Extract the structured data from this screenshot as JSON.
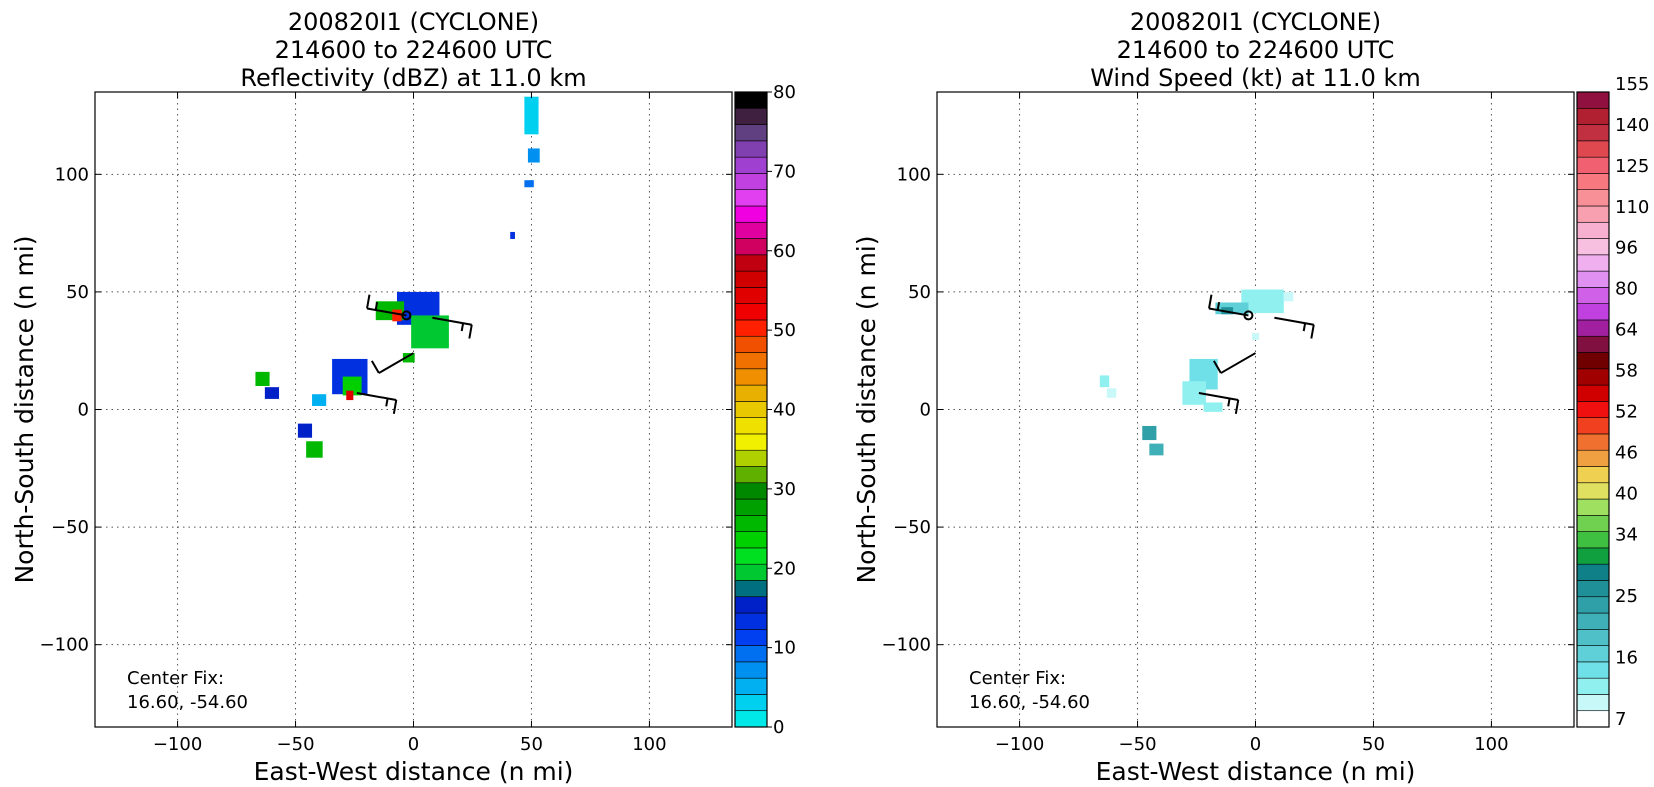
{
  "chart_data": [
    {
      "type": "heatmap",
      "title": [
        "200820I1 (CYCLONE)",
        "214600 to 224600 UTC",
        "Reflectivity (dBZ) at 11.0 km"
      ],
      "xlabel": "East-West distance (n mi)",
      "ylabel": "North-South distance (n mi)",
      "xlim": [
        -135,
        135
      ],
      "ylim": [
        -135,
        135
      ],
      "xticks": [
        -100,
        -50,
        0,
        50,
        100
      ],
      "yticks": [
        -100,
        -50,
        0,
        50,
        100
      ],
      "xtick_labels": [
        "−100",
        "−50",
        "0",
        "50",
        "100"
      ],
      "ytick_labels": [
        "−100",
        "−50",
        "0",
        "50",
        "100"
      ],
      "grid": true,
      "center_fix": {
        "label": "Center Fix:",
        "value": "16.60, -54.60"
      },
      "colorbar": {
        "min": 0,
        "max": 80,
        "step": 2.5,
        "tick_values": [
          0,
          10,
          20,
          30,
          40,
          50,
          60,
          70,
          80
        ],
        "tick_labels": [
          "0",
          "10",
          "20",
          "30",
          "40",
          "50",
          "60",
          "70",
          "80"
        ],
        "colors": [
          "#00e8e8",
          "#00d0f0",
          "#00b0f0",
          "#0090f0",
          "#0070f0",
          "#0040f0",
          "#0030e0",
          "#0020c8",
          "#007080",
          "#00c830",
          "#00e020",
          "#00d000",
          "#00b800",
          "#00a000",
          "#008800",
          "#60b000",
          "#b0d000",
          "#f0f000",
          "#f0e000",
          "#e8c800",
          "#e8b000",
          "#f09000",
          "#f07000",
          "#f05000",
          "#ff2000",
          "#f00000",
          "#e00000",
          "#d00000",
          "#c00010",
          "#d00060",
          "#e000a0",
          "#f000e0",
          "#e040f0",
          "#c040e0",
          "#a040d0",
          "#8040b0",
          "#604080",
          "#402040"
        ],
        "top_color": "#000000"
      },
      "cells": [
        {
          "x": 50,
          "y": 125,
          "w": 6,
          "h": 16,
          "v": 1
        },
        {
          "x": 51,
          "y": 108,
          "w": 5,
          "h": 6,
          "v": 3
        },
        {
          "x": 49,
          "y": 96,
          "w": 4,
          "h": 3,
          "v": 4
        },
        {
          "x": 42,
          "y": 74,
          "w": 2,
          "h": 3,
          "v": 6
        },
        {
          "x": 2,
          "y": 43,
          "w": 18,
          "h": 14,
          "v": 6
        },
        {
          "x": 7,
          "y": 33,
          "w": 16,
          "h": 14,
          "v": 9
        },
        {
          "x": -10,
          "y": 42,
          "w": 12,
          "h": 8,
          "v": 12
        },
        {
          "x": -7,
          "y": 40,
          "w": 4,
          "h": 5,
          "v": 24
        },
        {
          "x": -2,
          "y": 22,
          "w": 5,
          "h": 4,
          "v": 12
        },
        {
          "x": -64,
          "y": 13,
          "w": 6,
          "h": 6,
          "v": 12
        },
        {
          "x": -60,
          "y": 7,
          "w": 6,
          "h": 5,
          "v": 7
        },
        {
          "x": -27,
          "y": 14,
          "w": 15,
          "h": 15,
          "v": 6
        },
        {
          "x": -26,
          "y": 10,
          "w": 8,
          "h": 8,
          "v": 11
        },
        {
          "x": -27,
          "y": 6,
          "w": 3,
          "h": 4,
          "v": 26
        },
        {
          "x": -40,
          "y": 4,
          "w": 6,
          "h": 5,
          "v": 2
        },
        {
          "x": -46,
          "y": -9,
          "w": 6,
          "h": 6,
          "v": 7
        },
        {
          "x": -42,
          "y": -17,
          "w": 7,
          "h": 7,
          "v": 12
        }
      ],
      "wind_barbs": [
        {
          "x": -3,
          "y": 40,
          "dir_deg": 280,
          "speed_kt": 15
        },
        {
          "x": 8,
          "y": 39,
          "dir_deg": 100,
          "speed_kt": 15
        },
        {
          "x": 0,
          "y": 24,
          "dir_deg": 240,
          "speed_kt": 10
        },
        {
          "x": -24,
          "y": 7,
          "dir_deg": 100,
          "speed_kt": 15
        }
      ]
    },
    {
      "type": "heatmap",
      "title": [
        "200820I1 (CYCLONE)",
        "214600 to 224600 UTC",
        "Wind Speed (kt) at 11.0 km"
      ],
      "xlabel": "East-West distance (n mi)",
      "ylabel": "North-South distance (n mi)",
      "xlim": [
        -135,
        135
      ],
      "ylim": [
        -135,
        135
      ],
      "xticks": [
        -100,
        -50,
        0,
        50,
        100
      ],
      "yticks": [
        -100,
        -50,
        0,
        50,
        100
      ],
      "xtick_labels": [
        "−100",
        "−50",
        "0",
        "50",
        "100"
      ],
      "ytick_labels": [
        "−100",
        "−50",
        "0",
        "50",
        "100"
      ],
      "grid": true,
      "center_fix": {
        "label": "Center Fix:",
        "value": "16.60, -54.60"
      },
      "colorbar": {
        "tick_labels": [
          "7",
          "16",
          "25",
          "34",
          "40",
          "46",
          "52",
          "58",
          "64",
          "80",
          "96",
          "110",
          "125",
          "140",
          "155"
        ],
        "tick_bins": [
          0,
          3,
          6,
          9,
          11,
          13,
          15,
          17,
          19,
          21,
          23,
          25,
          27,
          29,
          31
        ],
        "colors": [
          "#ffffff",
          "#c8f8f8",
          "#90f0f0",
          "#70e0e8",
          "#60d0d8",
          "#50c0c8",
          "#40b0b8",
          "#30a0a8",
          "#209098",
          "#108088",
          "#10a040",
          "#40c040",
          "#70d050",
          "#a0e060",
          "#e0e060",
          "#f0d050",
          "#f0a040",
          "#f07030",
          "#f04020",
          "#f01010",
          "#d00000",
          "#a00000",
          "#700000",
          "#801040",
          "#a020a0",
          "#c040e0",
          "#d060e8",
          "#e090f0",
          "#f0b0f0",
          "#f8c0e0",
          "#f8b0d0",
          "#f8a0b0",
          "#f89098",
          "#f87880",
          "#f06070",
          "#e04850",
          "#c03040",
          "#b02030",
          "#901040"
        ]
      },
      "cells": [
        {
          "x": 3,
          "y": 46,
          "w": 18,
          "h": 10,
          "v": 2
        },
        {
          "x": -10,
          "y": 43,
          "w": 14,
          "h": 5,
          "v": 4
        },
        {
          "x": -12,
          "y": 42,
          "w": 5,
          "h": 3,
          "v": 8
        },
        {
          "x": 14,
          "y": 48,
          "w": 4,
          "h": 4,
          "v": 1
        },
        {
          "x": 0,
          "y": 31,
          "w": 3,
          "h": 3,
          "v": 1
        },
        {
          "x": -64,
          "y": 12,
          "w": 4,
          "h": 5,
          "v": 2
        },
        {
          "x": -61,
          "y": 7,
          "w": 4,
          "h": 4,
          "v": 1
        },
        {
          "x": -22,
          "y": 15,
          "w": 12,
          "h": 13,
          "v": 3
        },
        {
          "x": -26,
          "y": 7,
          "w": 10,
          "h": 10,
          "v": 2
        },
        {
          "x": -18,
          "y": 1,
          "w": 8,
          "h": 4,
          "v": 2
        },
        {
          "x": -45,
          "y": -10,
          "w": 6,
          "h": 6,
          "v": 7
        },
        {
          "x": -42,
          "y": -17,
          "w": 6,
          "h": 5,
          "v": 6
        }
      ],
      "wind_barbs": [
        {
          "x": -3,
          "y": 40,
          "dir_deg": 280,
          "speed_kt": 15
        },
        {
          "x": 8,
          "y": 39,
          "dir_deg": 100,
          "speed_kt": 15
        },
        {
          "x": 0,
          "y": 24,
          "dir_deg": 240,
          "speed_kt": 10
        },
        {
          "x": -24,
          "y": 7,
          "dir_deg": 100,
          "speed_kt": 15
        }
      ]
    }
  ]
}
